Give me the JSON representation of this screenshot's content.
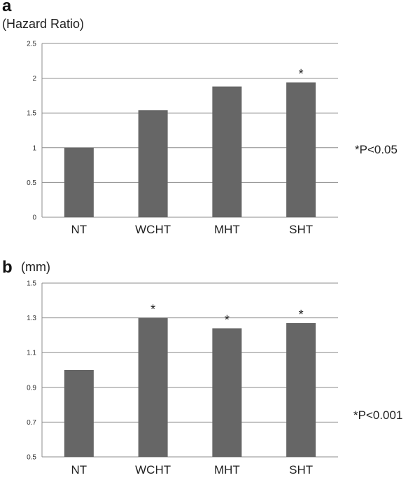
{
  "chart_data": [
    {
      "type": "bar",
      "panel": "a",
      "ylabel": "(Hazard Ratio)",
      "categories": [
        "NT",
        "WCHT",
        "MHT",
        "SHT"
      ],
      "values": [
        1.0,
        1.54,
        1.88,
        1.94
      ],
      "significant": [
        false,
        false,
        false,
        true
      ],
      "significance_marker": "*",
      "ylim": [
        0,
        2.5
      ],
      "yticks": [
        "0",
        "0.5",
        "1",
        "1.5",
        "2",
        "2.5"
      ],
      "ytick_values": [
        0,
        0.5,
        1,
        1.5,
        2,
        2.5
      ],
      "annotation": "*P<0.05",
      "bar_color": "#666666",
      "grid": true
    },
    {
      "type": "bar",
      "panel": "b",
      "ylabel": "(mm)",
      "categories": [
        "NT",
        "WCHT",
        "MHT",
        "SHT"
      ],
      "values": [
        1.0,
        1.3,
        1.24,
        1.27
      ],
      "significant": [
        false,
        true,
        true,
        true
      ],
      "significance_marker": "*",
      "ylim": [
        0.5,
        1.5
      ],
      "yticks": [
        "0.5",
        "0.7",
        "0.9",
        "1.1",
        "1.3",
        "1.5"
      ],
      "ytick_values": [
        0.5,
        0.7,
        0.9,
        1.1,
        1.3,
        1.5
      ],
      "annotation": "*P<0.001",
      "bar_color": "#666666",
      "grid": true
    }
  ]
}
